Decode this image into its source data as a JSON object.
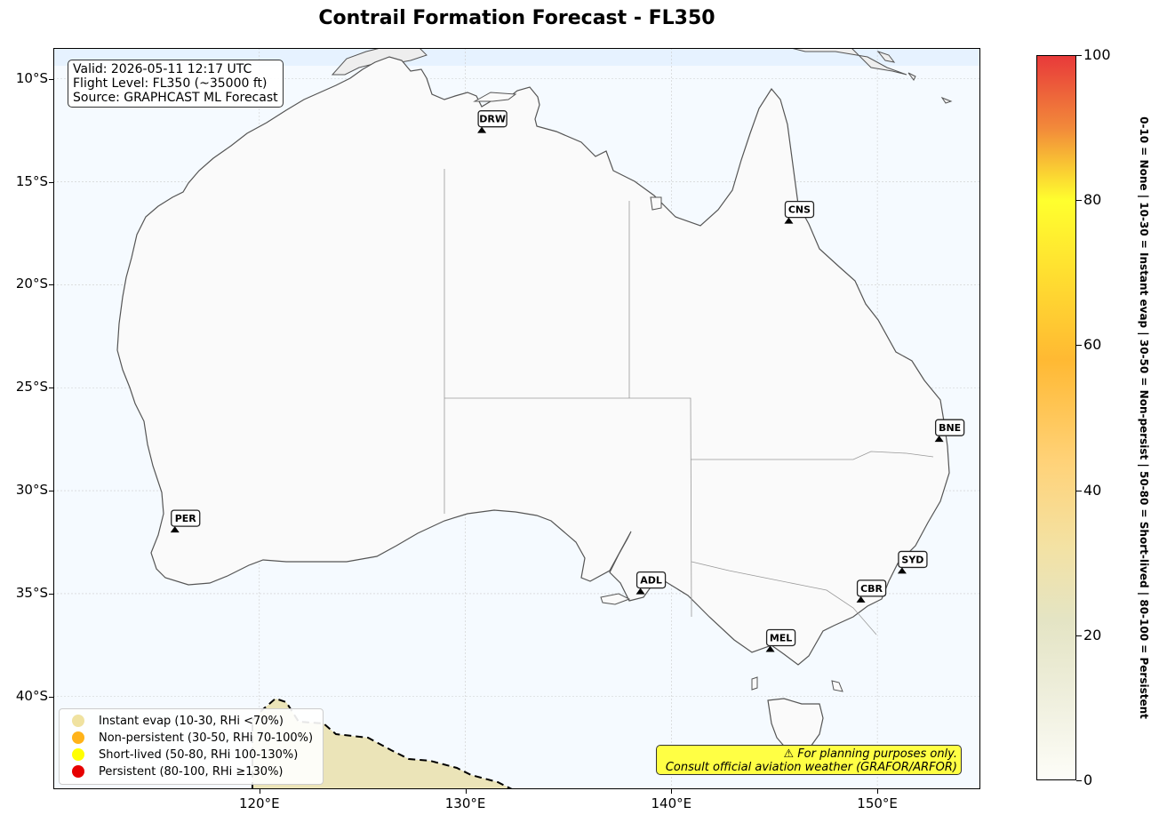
{
  "title": "Contrail Formation Forecast - FL350",
  "info": {
    "valid": "Valid: 2026-05-11 12:17 UTC",
    "flight_level": "Flight Level: FL350 (~35000 ft)",
    "source": "Source: GRAPHCAST ML Forecast"
  },
  "axes": {
    "lon_range": [
      110,
      155
    ],
    "lat_range": [
      -44.5,
      -8.5
    ],
    "lat_ticks": [
      {
        "value": -10,
        "label": "10°S"
      },
      {
        "value": -15,
        "label": "15°S"
      },
      {
        "value": -20,
        "label": "20°S"
      },
      {
        "value": -25,
        "label": "25°S"
      },
      {
        "value": -30,
        "label": "30°S"
      },
      {
        "value": -35,
        "label": "35°S"
      },
      {
        "value": -40,
        "label": "40°S"
      }
    ],
    "lon_ticks": [
      {
        "value": 120,
        "label": "120°E"
      },
      {
        "value": 130,
        "label": "130°E"
      },
      {
        "value": 140,
        "label": "140°E"
      },
      {
        "value": 150,
        "label": "150°E"
      }
    ],
    "grid": true
  },
  "stations": [
    {
      "code": "DRW",
      "lon": 130.8,
      "lat": -12.5
    },
    {
      "code": "CNS",
      "lon": 145.7,
      "lat": -16.9
    },
    {
      "code": "BNE",
      "lon": 153.0,
      "lat": -27.5
    },
    {
      "code": "PER",
      "lon": 115.9,
      "lat": -31.9
    },
    {
      "code": "ADL",
      "lon": 138.5,
      "lat": -34.9
    },
    {
      "code": "SYD",
      "lon": 151.2,
      "lat": -33.9
    },
    {
      "code": "CBR",
      "lon": 149.2,
      "lat": -35.3
    },
    {
      "code": "MEL",
      "lon": 144.8,
      "lat": -37.7
    }
  ],
  "legend": {
    "items": [
      {
        "label": "Instant evap (10-30, RHi <70%)",
        "color": "#f0e2a0"
      },
      {
        "label": "Non-persistent (30-50, RHi 70-100%)",
        "color": "#ffb31a"
      },
      {
        "label": "Short-lived (50-80, RHi 100-130%)",
        "color": "#ffff00"
      },
      {
        "label": "Persistent (80-100, RHi ≥130%)",
        "color": "#e60000"
      }
    ]
  },
  "disclaimer": {
    "line1": "⚠ For planning purposes only.",
    "line2": "Consult official aviation weather (GRAFOR/ARFOR)"
  },
  "colorbar": {
    "min": 0,
    "max": 100,
    "ticks": [
      {
        "value": 0,
        "label": "0"
      },
      {
        "value": 20,
        "label": "20"
      },
      {
        "value": 40,
        "label": "40"
      },
      {
        "value": 60,
        "label": "60"
      },
      {
        "value": 80,
        "label": "80"
      },
      {
        "value": 100,
        "label": "100"
      }
    ],
    "label": "0-10 = None  |  10-30 = Instant evap  |  30-50 = Non-persist  |  50-80 = Short-lived  |  80-100 = Persistent"
  },
  "colors": {
    "ocean": "#f5faff",
    "land": "#fafafa",
    "coast": "#555555",
    "instant_evap_area": "#ebe4b8",
    "north_band": "#e6f2ff",
    "disclaimer_bg": "#ffff44"
  }
}
